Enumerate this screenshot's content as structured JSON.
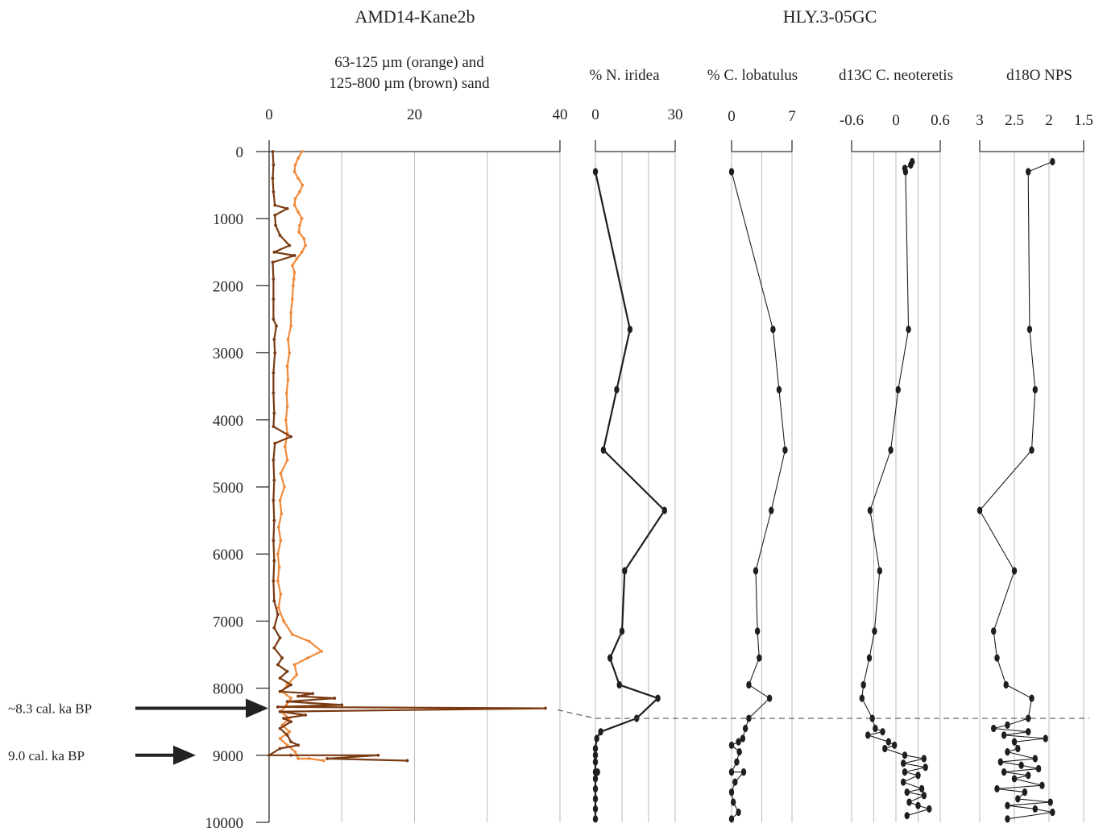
{
  "titles": {
    "left": "AMD14-Kane2b",
    "right": "HLY.3-05GC"
  },
  "colors": {
    "orange": "#F08A3C",
    "brown": "#7A3A12",
    "black": "#1F1F1F",
    "grid": "#BBBBBB",
    "axis": "#333333"
  },
  "annotations": [
    {
      "label": "~8.3 cal. ka BP",
      "y": 8300
    },
    {
      "label": "9.0 cal. ka BP",
      "y": 9000
    }
  ],
  "tie_line": {
    "y_left": 8300,
    "y_right": 8450,
    "style": "dashed"
  },
  "chart_data": [
    {
      "type": "line",
      "title": "63-125 µm (orange) and 125-800 µm (brown) sand",
      "title_lines": [
        "63-125 µm (orange) and",
        "125-800 µm (brown) sand"
      ],
      "xlim": [
        0,
        40
      ],
      "xticks": [
        0,
        20,
        40
      ],
      "ylim": [
        0,
        10000
      ],
      "yticks": [
        0,
        1000,
        2000,
        3000,
        4000,
        5000,
        6000,
        7000,
        8000,
        9000,
        10000
      ],
      "grid": true,
      "series": [
        {
          "name": "63-125 µm (orange)",
          "color": "orange",
          "points": [
            [
              4.5,
              0
            ],
            [
              4,
              100
            ],
            [
              3.6,
              200
            ],
            [
              3.5,
              300
            ],
            [
              4,
              400
            ],
            [
              4.6,
              500
            ],
            [
              4.2,
              600
            ],
            [
              3.6,
              700
            ],
            [
              3.5,
              800
            ],
            [
              4,
              900
            ],
            [
              4.5,
              1000
            ],
            [
              4.2,
              1100
            ],
            [
              4.1,
              1200
            ],
            [
              4.8,
              1300
            ],
            [
              5,
              1400
            ],
            [
              4.5,
              1500
            ],
            [
              3.8,
              1600
            ],
            [
              3.2,
              1700
            ],
            [
              3.5,
              1800
            ],
            [
              3.4,
              1900
            ],
            [
              3.3,
              2000
            ],
            [
              3.2,
              2200
            ],
            [
              3,
              2400
            ],
            [
              3,
              2600
            ],
            [
              2.6,
              2800
            ],
            [
              2.8,
              3000
            ],
            [
              2.5,
              3200
            ],
            [
              2.6,
              3400
            ],
            [
              2.4,
              3600
            ],
            [
              2.5,
              3800
            ],
            [
              2.3,
              4000
            ],
            [
              2.5,
              4200
            ],
            [
              2.2,
              4400
            ],
            [
              2.5,
              4600
            ],
            [
              1.6,
              4800
            ],
            [
              2.1,
              5000
            ],
            [
              1.5,
              5200
            ],
            [
              1.7,
              5400
            ],
            [
              1.3,
              5600
            ],
            [
              1.6,
              5800
            ],
            [
              1.2,
              6000
            ],
            [
              1.4,
              6200
            ],
            [
              1.2,
              6400
            ],
            [
              1.6,
              6600
            ],
            [
              1.3,
              6800
            ],
            [
              2,
              7000
            ],
            [
              3.2,
              7200
            ],
            [
              5.5,
              7300
            ],
            [
              7.2,
              7450
            ],
            [
              5.3,
              7550
            ],
            [
              3.5,
              7650
            ],
            [
              3.8,
              7800
            ],
            [
              2.5,
              7950
            ],
            [
              1.8,
              8050
            ],
            [
              3,
              8150
            ],
            [
              2.4,
              8250
            ],
            [
              1.6,
              8350
            ],
            [
              2.8,
              8450
            ],
            [
              1.8,
              8550
            ],
            [
              2.8,
              8650
            ],
            [
              1.5,
              8750
            ],
            [
              2.5,
              8850
            ],
            [
              3.6,
              8950
            ],
            [
              4,
              9050
            ],
            [
              5.5,
              9050
            ],
            [
              7.5,
              9080
            ]
          ]
        },
        {
          "name": "125-800 µm (brown)",
          "color": "brown",
          "points": [
            [
              0.5,
              0
            ],
            [
              0.6,
              200
            ],
            [
              0.5,
              400
            ],
            [
              0.6,
              600
            ],
            [
              0.8,
              800
            ],
            [
              2.5,
              850
            ],
            [
              0.8,
              950
            ],
            [
              0.9,
              1100
            ],
            [
              1.5,
              1250
            ],
            [
              2.8,
              1400
            ],
            [
              0.7,
              1500
            ],
            [
              3.5,
              1550
            ],
            [
              0.5,
              1650
            ],
            [
              0.6,
              1900
            ],
            [
              0.6,
              2200
            ],
            [
              0.6,
              2500
            ],
            [
              1,
              2600
            ],
            [
              0.7,
              2800
            ],
            [
              0.8,
              3000
            ],
            [
              0.6,
              3300
            ],
            [
              0.6,
              3600
            ],
            [
              0.7,
              3900
            ],
            [
              0.6,
              4100
            ],
            [
              3,
              4250
            ],
            [
              0.8,
              4350
            ],
            [
              0.6,
              4600
            ],
            [
              0.7,
              4900
            ],
            [
              0.6,
              5200
            ],
            [
              0.7,
              5500
            ],
            [
              0.6,
              5800
            ],
            [
              0.7,
              6100
            ],
            [
              0.6,
              6400
            ],
            [
              0.7,
              6700
            ],
            [
              1.2,
              6900
            ],
            [
              0.7,
              7100
            ],
            [
              1.5,
              7250
            ],
            [
              0.7,
              7400
            ],
            [
              1.8,
              7550
            ],
            [
              1.2,
              7650
            ],
            [
              2.5,
              7750
            ],
            [
              1.5,
              7850
            ],
            [
              3,
              7950
            ],
            [
              1.5,
              8050
            ],
            [
              6,
              8080
            ],
            [
              4,
              8120
            ],
            [
              9,
              8150
            ],
            [
              2.5,
              8200
            ],
            [
              10,
              8250
            ],
            [
              1.2,
              8280
            ],
            [
              38,
              8300
            ],
            [
              1.5,
              8350
            ],
            [
              5,
              8400
            ],
            [
              2,
              8450
            ],
            [
              3,
              8500
            ],
            [
              1.5,
              8600
            ],
            [
              2.5,
              8700
            ],
            [
              3,
              8800
            ],
            [
              4,
              8850
            ],
            [
              1.5,
              8900
            ],
            [
              0,
              9000
            ],
            [
              3,
              9000
            ],
            [
              15,
              9000
            ],
            [
              8,
              9050
            ],
            [
              19,
              9080
            ]
          ]
        }
      ]
    },
    {
      "type": "line",
      "title": "% N. iridea",
      "xlim": [
        0,
        30
      ],
      "xticks": [
        0,
        30
      ],
      "ylim": [
        0,
        10000
      ],
      "grid": true,
      "series": [
        {
          "color": "black",
          "points": [
            [
              0,
              300
            ],
            [
              13,
              2650
            ],
            [
              8,
              3550
            ],
            [
              3,
              4450
            ],
            [
              26,
              5350
            ],
            [
              11,
              6250
            ],
            [
              10,
              7150
            ],
            [
              5.5,
              7550
            ],
            [
              9,
              7950
            ],
            [
              23.5,
              8150
            ],
            [
              15.5,
              8450
            ],
            [
              2,
              8650
            ],
            [
              0.5,
              8750
            ],
            [
              0,
              8900
            ],
            [
              0,
              9000
            ],
            [
              0,
              9100
            ],
            [
              0,
              9250
            ],
            [
              0.8,
              9250
            ],
            [
              0,
              9350
            ],
            [
              0,
              9500
            ],
            [
              0,
              9650
            ],
            [
              0,
              9800
            ],
            [
              0,
              9950
            ]
          ]
        }
      ]
    },
    {
      "type": "line",
      "title": "% C. lobatulus",
      "xlim": [
        0,
        7
      ],
      "xticks": [
        0,
        7
      ],
      "ylim": [
        0,
        10000
      ],
      "grid": true,
      "series": [
        {
          "color": "black",
          "points": [
            [
              0,
              300
            ],
            [
              4.8,
              2650
            ],
            [
              5.5,
              3550
            ],
            [
              6.2,
              4450
            ],
            [
              4.6,
              5350
            ],
            [
              2.8,
              6250
            ],
            [
              3,
              7150
            ],
            [
              3.2,
              7550
            ],
            [
              2,
              7950
            ],
            [
              4.4,
              8150
            ],
            [
              2,
              8450
            ],
            [
              1.6,
              8600
            ],
            [
              1.3,
              8750
            ],
            [
              0.8,
              8800
            ],
            [
              0,
              8850
            ],
            [
              0.9,
              8950
            ],
            [
              0.6,
              9100
            ],
            [
              0,
              9250
            ],
            [
              1.4,
              9250
            ],
            [
              0.4,
              9400
            ],
            [
              0,
              9550
            ],
            [
              0.2,
              9700
            ],
            [
              0.8,
              9850
            ],
            [
              0,
              9950
            ]
          ]
        }
      ]
    },
    {
      "type": "line",
      "title": "d13C C. neoteretis",
      "xlim": [
        -0.6,
        0.6
      ],
      "xticks": [
        -0.6,
        0,
        0.6
      ],
      "ylim": [
        0,
        10000
      ],
      "grid": true,
      "series": [
        {
          "color": "black",
          "points": [
            [
              0.22,
              150
            ],
            [
              0.2,
              200
            ],
            [
              0.12,
              250
            ],
            [
              0.13,
              300
            ],
            [
              0.17,
              2650
            ],
            [
              0.03,
              3550
            ],
            [
              -0.07,
              4450
            ],
            [
              -0.35,
              5350
            ],
            [
              -0.22,
              6250
            ],
            [
              -0.29,
              7150
            ],
            [
              -0.36,
              7550
            ],
            [
              -0.44,
              7950
            ],
            [
              -0.46,
              8150
            ],
            [
              -0.32,
              8450
            ],
            [
              -0.28,
              8600
            ],
            [
              -0.18,
              8650
            ],
            [
              -0.38,
              8700
            ],
            [
              -0.1,
              8800
            ],
            [
              -0.02,
              8850
            ],
            [
              -0.15,
              8900
            ],
            [
              0.12,
              9000
            ],
            [
              0.38,
              9050
            ],
            [
              0.1,
              9120
            ],
            [
              0.4,
              9180
            ],
            [
              0.12,
              9250
            ],
            [
              0.3,
              9300
            ],
            [
              0.1,
              9400
            ],
            [
              0.35,
              9500
            ],
            [
              0.15,
              9550
            ],
            [
              0.38,
              9600
            ],
            [
              0.18,
              9700
            ],
            [
              0.3,
              9750
            ],
            [
              0.45,
              9800
            ],
            [
              0.15,
              9900
            ]
          ]
        }
      ]
    },
    {
      "type": "line",
      "title": "d18O NPS",
      "xlim": [
        3,
        1.5
      ],
      "xticks": [
        3,
        2.5,
        2,
        1.5
      ],
      "x_reversed": true,
      "ylim": [
        0,
        10000
      ],
      "grid": true,
      "series": [
        {
          "color": "black",
          "points": [
            [
              1.95,
              150
            ],
            [
              2.3,
              300
            ],
            [
              2.28,
              2650
            ],
            [
              2.2,
              3550
            ],
            [
              2.25,
              4450
            ],
            [
              3,
              5350
            ],
            [
              2.5,
              6250
            ],
            [
              2.8,
              7150
            ],
            [
              2.75,
              7550
            ],
            [
              2.62,
              7950
            ],
            [
              2.25,
              8150
            ],
            [
              2.3,
              8450
            ],
            [
              2.6,
              8550
            ],
            [
              2.8,
              8600
            ],
            [
              2.3,
              8650
            ],
            [
              2.65,
              8700
            ],
            [
              2.05,
              8750
            ],
            [
              2.5,
              8800
            ],
            [
              2.45,
              8900
            ],
            [
              2.6,
              8950
            ],
            [
              2.2,
              9050
            ],
            [
              2.7,
              9100
            ],
            [
              2.4,
              9150
            ],
            [
              2.15,
              9200
            ],
            [
              2.65,
              9250
            ],
            [
              2.3,
              9300
            ],
            [
              2.5,
              9350
            ],
            [
              2.1,
              9450
            ],
            [
              2.75,
              9500
            ],
            [
              2.35,
              9550
            ],
            [
              2.45,
              9650
            ],
            [
              1.98,
              9700
            ],
            [
              2.6,
              9750
            ],
            [
              2.2,
              9800
            ],
            [
              1.95,
              9850
            ],
            [
              2.6,
              9950
            ]
          ]
        }
      ]
    }
  ]
}
